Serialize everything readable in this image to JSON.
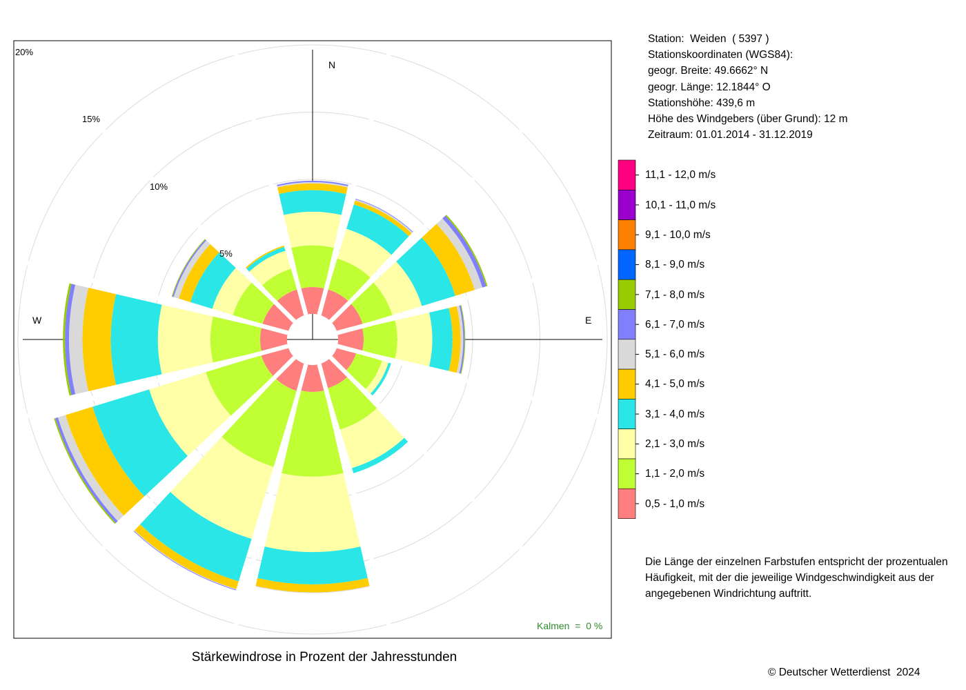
{
  "station_info": {
    "station": "Station:  Weiden  ( 5397 )",
    "coords_heading": "Stationskoordinaten (WGS84):",
    "latitude": "geogr. Breite: 49.6662° N",
    "longitude": "geogr. Länge: 12.1844° O",
    "elevation": "Stationshöhe: 439,6 m",
    "sensor_height": "Höhe des Windgebers (über Grund): 12 m",
    "period": "Zeitraum: 01.01.2014 - 31.12.2019"
  },
  "directions": {
    "n": "N",
    "e": "E",
    "w": "W"
  },
  "calm_label": "Kalmen  =  0 %",
  "title": "Stärkewindrose in Prozent der Jahresstunden",
  "copyright": "© Deutscher Wetterdienst  2024",
  "note": "Die Länge der einzelnen Farbstufen entspricht der prozentualen Häufigkeit, mit der die jeweilige Windgeschwindigkeit aus der angegebenen Windrichtung auftritt.",
  "chart_data": {
    "type": "wind-rose",
    "title": "Stärkewindrose in Prozent der Jahresstunden",
    "unit": "%",
    "ring_values": [
      5,
      10,
      15,
      20
    ],
    "ring_labels": [
      "5%",
      "10%",
      "15%",
      "20%"
    ],
    "directions_deg": [
      0,
      30,
      60,
      90,
      120,
      150,
      180,
      210,
      240,
      270,
      300,
      330
    ],
    "classes": [
      {
        "label": "0,5 - 1,0 m/s",
        "color": "#ff7f7f"
      },
      {
        "label": "1,1 - 2,0 m/s",
        "color": "#bfff33"
      },
      {
        "label": "2,1 - 3,0 m/s",
        "color": "#ffffa8"
      },
      {
        "label": "3,1 - 4,0 m/s",
        "color": "#2ae6e6"
      },
      {
        "label": "4,1 - 5,0 m/s",
        "color": "#ffcc00"
      },
      {
        "label": "5,1 - 6,0 m/s",
        "color": "#d9d9d9"
      },
      {
        "label": "6,1 - 7,0 m/s",
        "color": "#8080ff"
      },
      {
        "label": "7,1 - 8,0 m/s",
        "color": "#99cc00"
      },
      {
        "label": "8,1 - 9,0 m/s",
        "color": "#0066ff"
      },
      {
        "label": "9,1 - 10,0 m/s",
        "color": "#ff8000"
      },
      {
        "label": "10,1 - 11,0 m/s",
        "color": "#9900cc"
      },
      {
        "label": "11,1 - 12,0 m/s",
        "color": "#ff0080"
      }
    ],
    "series": [
      {
        "direction": 0,
        "values": [
          2.0,
          3.1,
          2.5,
          1.6,
          0.5,
          0.1,
          0.1,
          0,
          0,
          0,
          0,
          0
        ]
      },
      {
        "direction": 30,
        "values": [
          2.0,
          2.4,
          2.3,
          1.9,
          0.3,
          0.1,
          0.05,
          0,
          0,
          0,
          0,
          0
        ]
      },
      {
        "direction": 60,
        "values": [
          2.0,
          2.3,
          2.3,
          2.6,
          1.5,
          0.6,
          0.3,
          0.1,
          0,
          0,
          0,
          0
        ]
      },
      {
        "direction": 90,
        "values": [
          1.9,
          2.5,
          2.6,
          1.5,
          0.6,
          0.2,
          0.1,
          0.05,
          0,
          0,
          0,
          0
        ]
      },
      {
        "direction": 120,
        "values": [
          1.5,
          2.0,
          0.5,
          0.2,
          0,
          0,
          0,
          0,
          0,
          0,
          0,
          0
        ]
      },
      {
        "direction": 150,
        "values": [
          1.9,
          3.2,
          3.0,
          0.4,
          0,
          0,
          0,
          0,
          0,
          0,
          0,
          0
        ]
      },
      {
        "direction": 180,
        "values": [
          2.0,
          6.3,
          5.6,
          2.4,
          0.6,
          0.05,
          0,
          0,
          0,
          0,
          0,
          0
        ]
      },
      {
        "direction": 210,
        "values": [
          2.1,
          5.9,
          5.6,
          3.3,
          0.6,
          0.05,
          0.05,
          0,
          0,
          0,
          0,
          0
        ]
      },
      {
        "direction": 240,
        "values": [
          2.1,
          4.3,
          4.4,
          4.4,
          2.1,
          0.6,
          0.2,
          0.1,
          0,
          0,
          0,
          0
        ]
      },
      {
        "direction": 270,
        "values": [
          2.0,
          3.7,
          3.9,
          3.5,
          2.1,
          1.0,
          0.3,
          0.15,
          0,
          0,
          0,
          0
        ]
      },
      {
        "direction": 300,
        "values": [
          2.0,
          2.3,
          1.6,
          1.7,
          0.9,
          0.4,
          0.1,
          0.05,
          0,
          0,
          0,
          0
        ]
      },
      {
        "direction": 330,
        "values": [
          2.0,
          1.6,
          1.4,
          0.3,
          0.1,
          0,
          0,
          0,
          0,
          0,
          0,
          0
        ]
      }
    ],
    "calm": 0,
    "grid": true
  }
}
